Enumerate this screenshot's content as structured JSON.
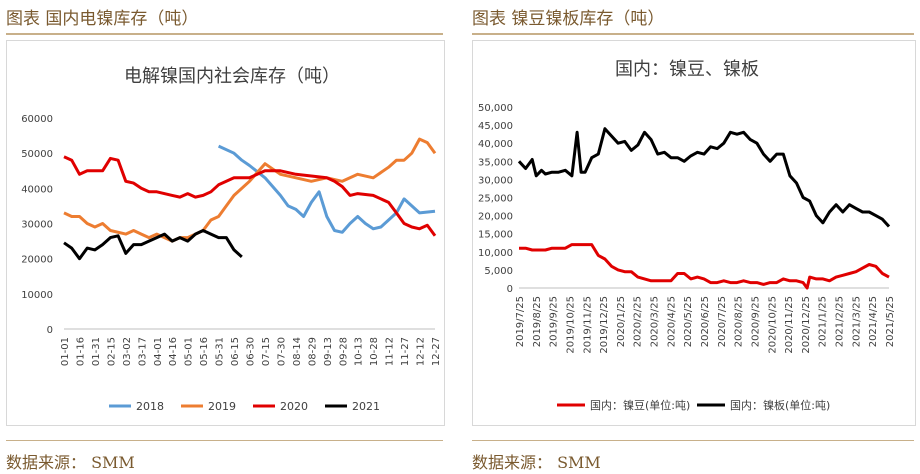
{
  "left_panel": {
    "title": "图表  国内电镍库存（吨）",
    "source": "数据来源：  SMM"
  },
  "right_panel": {
    "title": "图表  镍豆镍板库存（吨）",
    "source": "数据来源：  SMM"
  },
  "colors": {
    "header_text": "#7a5a2f",
    "rule": "#c8b08a",
    "s2018": "#5b9bd5",
    "s2019": "#ed7d31",
    "s2020": "#e00000",
    "s2021": "#000000",
    "beans": "#e00000",
    "plates": "#000000"
  },
  "chart_data": [
    {
      "type": "line",
      "title": "电解镍国内社会库存（吨）",
      "x": [
        "01-01",
        "01-16",
        "01-31",
        "02-15",
        "03-02",
        "03-17",
        "04-01",
        "04-16",
        "05-01",
        "05-16",
        "05-31",
        "06-15",
        "06-30",
        "07-15",
        "07-30",
        "08-14",
        "08-29",
        "09-13",
        "09-28",
        "10-13",
        "10-28",
        "11-12",
        "11-27",
        "12-12",
        "12-27"
      ],
      "ylim": [
        0,
        60000
      ],
      "yticks": [
        0,
        10000,
        20000,
        30000,
        40000,
        50000,
        60000
      ],
      "legend_position": "bottom",
      "series": [
        {
          "name": "2018",
          "color": "#5b9bd5",
          "points": [
            [
              10,
              52000
            ],
            [
              11,
              50000
            ],
            [
              11.5,
              48000
            ],
            [
              12,
              46500
            ],
            [
              13,
              43000
            ],
            [
              14,
              38000
            ],
            [
              14.5,
              35000
            ],
            [
              15,
              34000
            ],
            [
              15.5,
              32000
            ],
            [
              16,
              36000
            ],
            [
              16.5,
              39000
            ],
            [
              17,
              32000
            ],
            [
              17.5,
              28000
            ],
            [
              18,
              27500
            ],
            [
              18.5,
              30000
            ],
            [
              19,
              32000
            ],
            [
              19.5,
              30000
            ],
            [
              20,
              28500
            ],
            [
              20.5,
              29000
            ],
            [
              21,
              31000
            ],
            [
              21.5,
              33000
            ],
            [
              22,
              37000
            ],
            [
              22.5,
              35000
            ],
            [
              23,
              33000
            ],
            [
              24,
              33500
            ]
          ]
        },
        {
          "name": "2019",
          "color": "#ed7d31",
          "points": [
            [
              0,
              33000
            ],
            [
              0.5,
              32000
            ],
            [
              1,
              32000
            ],
            [
              1.5,
              30000
            ],
            [
              2,
              29000
            ],
            [
              2.5,
              30000
            ],
            [
              3,
              28000
            ],
            [
              4,
              27000
            ],
            [
              4.5,
              28000
            ],
            [
              5,
              27000
            ],
            [
              5.5,
              26000
            ],
            [
              6,
              27000
            ],
            [
              7,
              25000
            ],
            [
              7.5,
              26000
            ],
            [
              8,
              26000
            ],
            [
              8.5,
              27000
            ],
            [
              9,
              28000
            ],
            [
              9.5,
              31000
            ],
            [
              10,
              32000
            ],
            [
              10.5,
              35000
            ],
            [
              11,
              38000
            ],
            [
              12,
              42000
            ],
            [
              13,
              47000
            ],
            [
              14,
              44000
            ],
            [
              15,
              43000
            ],
            [
              16,
              42000
            ],
            [
              17,
              43000
            ],
            [
              18,
              42000
            ],
            [
              19,
              44000
            ],
            [
              20,
              43000
            ],
            [
              21,
              46000
            ],
            [
              21.5,
              48000
            ],
            [
              22,
              48000
            ],
            [
              22.5,
              50000
            ],
            [
              23,
              54000
            ],
            [
              23.5,
              53000
            ],
            [
              24,
              50000
            ]
          ]
        },
        {
          "name": "2020",
          "color": "#e00000",
          "points": [
            [
              0,
              49000
            ],
            [
              0.5,
              48000
            ],
            [
              1,
              44000
            ],
            [
              1.5,
              45000
            ],
            [
              2,
              45000
            ],
            [
              2.5,
              45000
            ],
            [
              3,
              48500
            ],
            [
              3.5,
              48000
            ],
            [
              4,
              42000
            ],
            [
              4.5,
              41500
            ],
            [
              5,
              40000
            ],
            [
              5.5,
              39000
            ],
            [
              6,
              39000
            ],
            [
              7,
              38000
            ],
            [
              7.5,
              37500
            ],
            [
              8,
              38500
            ],
            [
              8.5,
              37500
            ],
            [
              9,
              38000
            ],
            [
              9.5,
              39000
            ],
            [
              10,
              41000
            ],
            [
              10.5,
              42000
            ],
            [
              11,
              43000
            ],
            [
              12,
              43000
            ],
            [
              12.5,
              44000
            ],
            [
              13,
              45000
            ],
            [
              14,
              45000
            ],
            [
              15,
              44000
            ],
            [
              16,
              43500
            ],
            [
              17,
              43000
            ],
            [
              17.5,
              42000
            ],
            [
              18,
              40500
            ],
            [
              18.5,
              38000
            ],
            [
              19,
              38500
            ],
            [
              20,
              38000
            ],
            [
              21,
              36000
            ],
            [
              21.5,
              33000
            ],
            [
              22,
              30000
            ],
            [
              22.5,
              29000
            ],
            [
              23,
              28500
            ],
            [
              23.5,
              29500
            ],
            [
              24,
              26500
            ]
          ]
        },
        {
          "name": "2021",
          "color": "#000000",
          "points": [
            [
              0,
              24500
            ],
            [
              0.5,
              23000
            ],
            [
              1,
              20000
            ],
            [
              1.5,
              23000
            ],
            [
              2,
              22500
            ],
            [
              2.5,
              24000
            ],
            [
              3,
              26000
            ],
            [
              3.5,
              26500
            ],
            [
              4,
              21500
            ],
            [
              4.5,
              24000
            ],
            [
              5,
              24000
            ],
            [
              5.5,
              25000
            ],
            [
              6,
              26000
            ],
            [
              6.5,
              27000
            ],
            [
              7,
              25000
            ],
            [
              7.5,
              26000
            ],
            [
              8,
              25000
            ],
            [
              8.5,
              27000
            ],
            [
              9,
              28000
            ],
            [
              9.5,
              27000
            ],
            [
              10,
              26000
            ],
            [
              10.5,
              26000
            ],
            [
              11,
              22500
            ],
            [
              11.5,
              20500
            ]
          ]
        }
      ]
    },
    {
      "type": "line",
      "title": "国内：镍豆、镍板",
      "x": [
        "2019/7/25",
        "2019/8/25",
        "2019/9/25",
        "2019/10/25",
        "2019/11/25",
        "2019/12/25",
        "2020/1/25",
        "2020/2/25",
        "2020/3/25",
        "2020/4/25",
        "2020/5/25",
        "2020/6/25",
        "2020/7/25",
        "2020/8/25",
        "2020/9/25",
        "2020/10/25",
        "2020/11/25",
        "2020/12/25",
        "2021/1/25",
        "2021/2/25",
        "2021/3/25",
        "2021/4/25",
        "2021/5/25"
      ],
      "ylim": [
        0,
        50000
      ],
      "yticks": [
        0,
        5000,
        10000,
        15000,
        20000,
        25000,
        30000,
        35000,
        40000,
        45000,
        50000
      ],
      "ytick_labels": [
        "0",
        "5,000",
        "10,000",
        "15,000",
        "20,000",
        "25,000",
        "30,000",
        "35,000",
        "40,000",
        "45,000",
        "50,000"
      ],
      "legend_position": "bottom",
      "series": [
        {
          "name": "国内：镍豆(单位:吨)",
          "color": "#e00000",
          "points": [
            [
              0,
              11000
            ],
            [
              0.5,
              11000
            ],
            [
              1,
              10500
            ],
            [
              1.5,
              10500
            ],
            [
              2,
              10500
            ],
            [
              2.5,
              11000
            ],
            [
              3,
              11000
            ],
            [
              3.5,
              11000
            ],
            [
              4,
              12000
            ],
            [
              4.5,
              12000
            ],
            [
              5,
              12000
            ],
            [
              5.5,
              12000
            ],
            [
              6,
              9000
            ],
            [
              6.5,
              8000
            ],
            [
              7,
              6000
            ],
            [
              7.5,
              5000
            ],
            [
              8,
              4500
            ],
            [
              8.5,
              4500
            ],
            [
              9,
              3000
            ],
            [
              9.5,
              2500
            ],
            [
              10,
              2000
            ],
            [
              10.5,
              2000
            ],
            [
              11,
              2000
            ],
            [
              11.5,
              2000
            ],
            [
              12,
              4000
            ],
            [
              12.5,
              4000
            ],
            [
              13,
              2500
            ],
            [
              13.5,
              3000
            ],
            [
              14,
              2500
            ],
            [
              14.5,
              1500
            ],
            [
              15,
              1500
            ],
            [
              15.5,
              2000
            ],
            [
              16,
              1500
            ],
            [
              16.5,
              1500
            ],
            [
              17,
              2000
            ],
            [
              17.5,
              1500
            ],
            [
              18,
              1500
            ],
            [
              18.5,
              1000
            ],
            [
              19,
              1500
            ],
            [
              19.5,
              1500
            ],
            [
              20,
              2500
            ],
            [
              20.5,
              2000
            ],
            [
              21,
              2000
            ],
            [
              21.5,
              1500
            ],
            [
              21.8,
              0
            ],
            [
              22,
              3000
            ],
            [
              22.5,
              2500
            ],
            [
              23,
              2500
            ],
            [
              23.5,
              2000
            ],
            [
              24,
              3000
            ],
            [
              24.5,
              3500
            ],
            [
              25,
              4000
            ],
            [
              25.5,
              4500
            ],
            [
              26,
              5500
            ],
            [
              26.5,
              6500
            ],
            [
              27,
              6000
            ],
            [
              27.5,
              4000
            ],
            [
              28,
              3000
            ]
          ]
        },
        {
          "name": "国内：镍板(单位:吨)",
          "color": "#000000",
          "points": [
            [
              0,
              35000
            ],
            [
              0.5,
              33000
            ],
            [
              1,
              35500
            ],
            [
              1.3,
              31000
            ],
            [
              1.7,
              32500
            ],
            [
              2,
              31500
            ],
            [
              2.5,
              32000
            ],
            [
              3,
              32000
            ],
            [
              3.5,
              32500
            ],
            [
              4,
              31000
            ],
            [
              4.4,
              43000
            ],
            [
              4.7,
              32000
            ],
            [
              5,
              32000
            ],
            [
              5.5,
              36000
            ],
            [
              6,
              37000
            ],
            [
              6.5,
              44000
            ],
            [
              7,
              42000
            ],
            [
              7.5,
              40000
            ],
            [
              8,
              40500
            ],
            [
              8.5,
              38000
            ],
            [
              9,
              39500
            ],
            [
              9.5,
              43000
            ],
            [
              10,
              41000
            ],
            [
              10.5,
              37000
            ],
            [
              11,
              37500
            ],
            [
              11.5,
              36000
            ],
            [
              12,
              36000
            ],
            [
              12.5,
              35000
            ],
            [
              13,
              36500
            ],
            [
              13.5,
              37500
            ],
            [
              14,
              37000
            ],
            [
              14.5,
              39000
            ],
            [
              15,
              38500
            ],
            [
              15.5,
              40000
            ],
            [
              16,
              43000
            ],
            [
              16.5,
              42500
            ],
            [
              17,
              43000
            ],
            [
              17.5,
              41000
            ],
            [
              18,
              40000
            ],
            [
              18.5,
              37000
            ],
            [
              19,
              35000
            ],
            [
              19.5,
              37000
            ],
            [
              20,
              37000
            ],
            [
              20.5,
              31000
            ],
            [
              21,
              29000
            ],
            [
              21.5,
              25000
            ],
            [
              22,
              24000
            ],
            [
              22.5,
              20000
            ],
            [
              23,
              18000
            ],
            [
              23.5,
              21000
            ],
            [
              24,
              23000
            ],
            [
              24.5,
              21000
            ],
            [
              25,
              23000
            ],
            [
              25.5,
              22000
            ],
            [
              26,
              21000
            ],
            [
              26.5,
              21000
            ],
            [
              27,
              20000
            ],
            [
              27.5,
              19000
            ],
            [
              28,
              17000
            ]
          ]
        }
      ]
    }
  ]
}
